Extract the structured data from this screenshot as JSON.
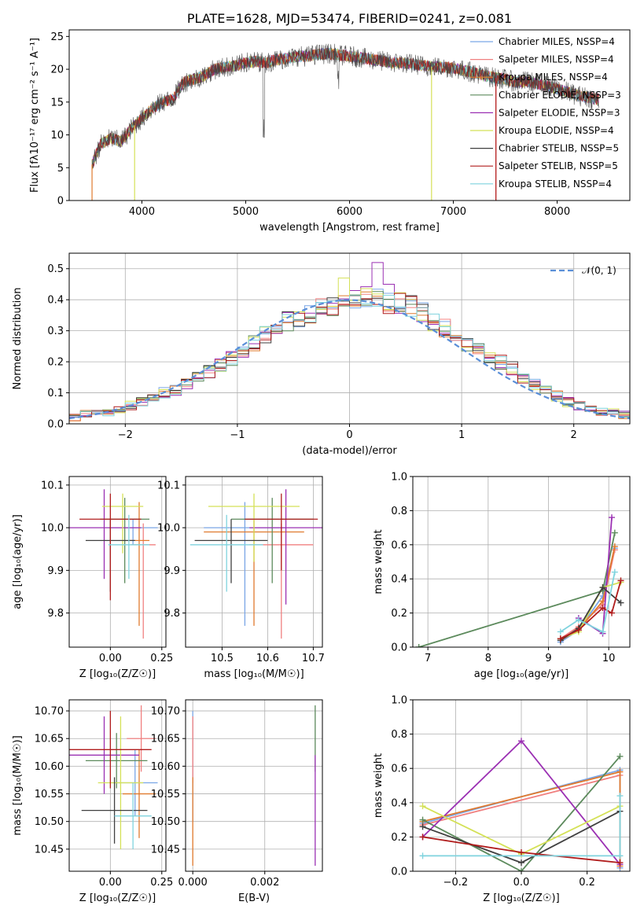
{
  "page": {
    "title": "PLATE=1628, MJD=53474, FIBERID=0241, z=0.081"
  },
  "chart_data": [
    {
      "id": "spectrum",
      "type": "line",
      "title": "PLATE=1628, MJD=53474, FIBERID=0241, z=0.081",
      "xlabel": "wavelength [Angstrom, rest frame]",
      "ylabel": "Flux [fλ10⁻¹⁷ erg cm⁻² s⁻¹ A⁻¹]",
      "xlim": [
        3300,
        8700
      ],
      "ylim": [
        0,
        26
      ],
      "xticks": [
        4000,
        5000,
        6000,
        7000,
        8000
      ],
      "yticks": [
        0,
        5,
        10,
        15,
        20,
        25
      ],
      "grid": false,
      "legend": "top-right",
      "x": [
        3520,
        3600,
        3700,
        3800,
        3900,
        4000,
        4100,
        4200,
        4300,
        4400,
        4500,
        4600,
        4700,
        4800,
        4900,
        5000,
        5100,
        5200,
        5300,
        5400,
        5500,
        5600,
        5700,
        5800,
        5900,
        6000,
        6100,
        6200,
        6300,
        6400,
        6500,
        6600,
        6700,
        6800,
        6900,
        7000,
        7100,
        7200,
        7300,
        7400,
        7500,
        7600,
        7700,
        7800,
        7900,
        8000,
        8100,
        8200,
        8300,
        8400
      ],
      "y": [
        5.5,
        8.5,
        9.5,
        9.0,
        11.0,
        12.5,
        14.0,
        15.0,
        15.5,
        18.0,
        18.5,
        19.0,
        20.0,
        20.3,
        20.5,
        21.0,
        21.2,
        21.0,
        21.5,
        21.6,
        22.0,
        22.0,
        22.3,
        22.4,
        22.2,
        22.0,
        21.8,
        21.5,
        21.3,
        21.0,
        21.0,
        20.8,
        20.6,
        20.4,
        20.3,
        20.2,
        19.8,
        19.5,
        19.0,
        18.7,
        18.5,
        18.0,
        18.2,
        17.8,
        17.5,
        17.0,
        16.5,
        16.0,
        15.7,
        15.4
      ],
      "series": [
        {
          "name": "Chabrier MILES, NSSP=4",
          "color": "#7aa6e6"
        },
        {
          "name": "Salpeter MILES, NSSP=4",
          "color": "#f08080"
        },
        {
          "name": "Kroupa MILES, NSSP=4",
          "color": "#e07a2e"
        },
        {
          "name": "Chabrier ELODIE, NSSP=3",
          "color": "#5c8a5c"
        },
        {
          "name": "Salpeter ELODIE, NSSP=3",
          "color": "#9b30b3"
        },
        {
          "name": "Kroupa ELODIE, NSSP=4",
          "color": "#d4e157"
        },
        {
          "name": "Chabrier STELIB, NSSP=5",
          "color": "#404040"
        },
        {
          "name": "Salpeter STELIB, NSSP=5",
          "color": "#b01c1c"
        },
        {
          "name": "Kroupa STELIB, NSSP=4",
          "color": "#7fd3de"
        }
      ]
    },
    {
      "id": "residuals",
      "type": "line",
      "xlabel": "(data-model)/error",
      "ylabel": "Normed distribution",
      "xlim": [
        -2.5,
        2.5
      ],
      "ylim": [
        0,
        0.55
      ],
      "xticks": [
        -2,
        -1,
        0,
        1,
        2
      ],
      "yticks": [
        0.0,
        0.1,
        0.2,
        0.3,
        0.4,
        0.5
      ],
      "grid": true,
      "legend": "top-right",
      "legend_entry": "𝒩(0, 1)",
      "bin_width": 0.1,
      "histogram_center": [
        0.02,
        0.03,
        0.03,
        0.04,
        0.05,
        0.06,
        0.07,
        0.08,
        0.1,
        0.11,
        0.13,
        0.15,
        0.17,
        0.19,
        0.21,
        0.23,
        0.26,
        0.29,
        0.31,
        0.33,
        0.34,
        0.35,
        0.37,
        0.38,
        0.39,
        0.4,
        0.41,
        0.4,
        0.39,
        0.39,
        0.38,
        0.36,
        0.33,
        0.31,
        0.29,
        0.26,
        0.24,
        0.22,
        0.2,
        0.18,
        0.15,
        0.13,
        0.11,
        0.09,
        0.07,
        0.06,
        0.05,
        0.04,
        0.04,
        0.03
      ],
      "gaussian_color": "#5a8fd8"
    },
    {
      "id": "age-vs-Z",
      "type": "scatter",
      "xlabel": "Z [log₁₀(Z/Z☉)]",
      "ylabel": "age  [log₁₀(age/yr)]",
      "xlim": [
        -0.2,
        0.27
      ],
      "ylim": [
        9.72,
        10.12
      ],
      "xticks": [
        0.0,
        0.25
      ],
      "xticklabels": [
        "0.00",
        "0.25"
      ],
      "yticks": [
        9.8,
        9.9,
        10.0,
        10.1
      ],
      "grid": true,
      "points": [
        {
          "x": 0.11,
          "y": 10.0,
          "xerr": 0.12,
          "yerr_lo": 0.04,
          "yerr_hi": 0.02
        },
        {
          "x": 0.16,
          "y": 9.96,
          "xerr": 0.06,
          "yerr_lo": 0.22,
          "yerr_hi": 0.05
        },
        {
          "x": 0.14,
          "y": 9.97,
          "xerr": 0.05,
          "yerr_lo": 0.2,
          "yerr_hi": 0.09
        },
        {
          "x": 0.07,
          "y": 10.02,
          "xerr": 0.12,
          "yerr_lo": 0.15,
          "yerr_hi": 0.05
        },
        {
          "x": -0.03,
          "y": 10.0,
          "xerr": 0.18,
          "yerr_lo": 0.12,
          "yerr_hi": 0.09
        },
        {
          "x": 0.06,
          "y": 10.05,
          "xerr": 0.1,
          "yerr_lo": 0.11,
          "yerr_hi": 0.03
        },
        {
          "x": 0.0,
          "y": 9.97,
          "xerr": 0.12,
          "yerr_lo": 0.12,
          "yerr_hi": 0.05
        },
        {
          "x": 0.0,
          "y": 10.02,
          "xerr": 0.15,
          "yerr_lo": 0.19,
          "yerr_hi": 0.06
        },
        {
          "x": 0.09,
          "y": 9.96,
          "xerr": 0.1,
          "yerr_lo": 0.08,
          "yerr_hi": 0.07
        }
      ]
    },
    {
      "id": "age-vs-mass",
      "type": "scatter",
      "xlabel": "mass [log₁₀(M/M☉)]",
      "xlim": [
        10.42,
        10.72
      ],
      "ylim": [
        9.72,
        10.12
      ],
      "xticks": [
        10.5,
        10.6,
        10.7
      ],
      "yticks": [
        9.8,
        9.9,
        10.0,
        10.1
      ],
      "grid": true,
      "points": [
        {
          "x": 10.55,
          "y": 10.0,
          "xerr": 0.09,
          "yerr_lo": 0.23,
          "yerr_hi": 0.06
        },
        {
          "x": 10.63,
          "y": 9.96,
          "xerr": 0.07,
          "yerr_lo": 0.22,
          "yerr_hi": 0.05
        },
        {
          "x": 10.57,
          "y": 9.99,
          "xerr": 0.11,
          "yerr_lo": 0.22,
          "yerr_hi": 0.03
        },
        {
          "x": 10.61,
          "y": 10.02,
          "xerr": 0.09,
          "yerr_lo": 0.15,
          "yerr_hi": 0.05
        },
        {
          "x": 10.64,
          "y": 10.0,
          "xerr": 0.08,
          "yerr_lo": 0.18,
          "yerr_hi": 0.09
        },
        {
          "x": 10.57,
          "y": 10.05,
          "xerr": 0.1,
          "yerr_lo": 0.13,
          "yerr_hi": 0.03
        },
        {
          "x": 10.52,
          "y": 9.97,
          "xerr": 0.08,
          "yerr_lo": 0.1,
          "yerr_hi": 0.05
        },
        {
          "x": 10.63,
          "y": 10.02,
          "xerr": 0.08,
          "yerr_lo": 0.12,
          "yerr_hi": 0.06
        },
        {
          "x": 10.51,
          "y": 9.96,
          "xerr": 0.08,
          "yerr_lo": 0.11,
          "yerr_hi": 0.07
        }
      ]
    },
    {
      "id": "weight-vs-age",
      "type": "line",
      "xlabel": "age  [log₁₀(age/yr)]",
      "ylabel": "mass weight",
      "xlim": [
        6.75,
        10.35
      ],
      "ylim": [
        0,
        1
      ],
      "xticks": [
        7,
        8,
        9,
        10
      ],
      "yticks": [
        0.0,
        0.2,
        0.4,
        0.6,
        0.8,
        1.0
      ],
      "grid": true,
      "series": [
        {
          "x": [
            9.2,
            9.5,
            9.9,
            10.1
          ],
          "y": [
            0.03,
            0.1,
            0.3,
            0.58
          ]
        },
        {
          "x": [
            9.2,
            9.5,
            9.9,
            10.1
          ],
          "y": [
            0.05,
            0.12,
            0.25,
            0.57
          ]
        },
        {
          "x": [
            9.2,
            9.5,
            9.9,
            10.1
          ],
          "y": [
            0.04,
            0.1,
            0.27,
            0.59
          ]
        },
        {
          "x": [
            6.85,
            9.9,
            10.1
          ],
          "y": [
            0.0,
            0.33,
            0.67
          ]
        },
        {
          "x": [
            9.5,
            9.9,
            10.05
          ],
          "y": [
            0.17,
            0.08,
            0.76
          ]
        },
        {
          "x": [
            9.2,
            9.5,
            9.9,
            10.2
          ],
          "y": [
            0.05,
            0.09,
            0.35,
            0.38
          ]
        },
        {
          "x": [
            9.2,
            9.5,
            9.9,
            10.2
          ],
          "y": [
            0.04,
            0.11,
            0.35,
            0.26
          ]
        },
        {
          "x": [
            9.2,
            9.5,
            9.9,
            10.05,
            10.2
          ],
          "y": [
            0.05,
            0.1,
            0.23,
            0.2,
            0.39
          ]
        },
        {
          "x": [
            9.2,
            9.5,
            9.9,
            10.1
          ],
          "y": [
            0.09,
            0.16,
            0.09,
            0.44
          ]
        }
      ]
    },
    {
      "id": "mass-vs-Z",
      "type": "scatter",
      "xlabel": "Z [log₁₀(Z/Z☉)]",
      "ylabel": "mass [log₁₀(M/M☉)]",
      "xlim": [
        -0.2,
        0.27
      ],
      "ylim": [
        10.41,
        10.72
      ],
      "xticks": [
        0.0,
        0.25
      ],
      "xticklabels": [
        "0.00",
        "0.25"
      ],
      "yticks": [
        10.45,
        10.5,
        10.55,
        10.6,
        10.65,
        10.7
      ],
      "grid": true,
      "points": [
        {
          "x": 0.12,
          "y": 10.57,
          "xerr": 0.11,
          "yerr": 0.06
        },
        {
          "x": 0.15,
          "y": 10.65,
          "xerr": 0.07,
          "yerr": 0.06
        },
        {
          "x": 0.14,
          "y": 10.55,
          "xerr": 0.08,
          "yerr": 0.08
        },
        {
          "x": 0.03,
          "y": 10.61,
          "xerr": 0.15,
          "yerr": 0.05
        },
        {
          "x": -0.03,
          "y": 10.62,
          "xerr": 0.17,
          "yerr": 0.07
        },
        {
          "x": 0.05,
          "y": 10.57,
          "xerr": 0.11,
          "yerr": 0.12
        },
        {
          "x": 0.02,
          "y": 10.52,
          "xerr": 0.16,
          "yerr": 0.06
        },
        {
          "x": 0.0,
          "y": 10.63,
          "xerr": 0.2,
          "yerr": 0.07
        },
        {
          "x": 0.11,
          "y": 10.51,
          "xerr": 0.09,
          "yerr": 0.06
        }
      ]
    },
    {
      "id": "mass-vs-EBV",
      "type": "scatter",
      "xlabel": "E(B-V)",
      "xlim": [
        -0.0002,
        0.0036
      ],
      "ylim": [
        10.41,
        10.72
      ],
      "xticks": [
        0.0,
        0.002
      ],
      "xticklabels": [
        "0.000",
        "0.002"
      ],
      "yticks": [
        10.45,
        10.5,
        10.55,
        10.6,
        10.65,
        10.7
      ],
      "grid": true,
      "points": [
        {
          "x": 0.0,
          "y": 10.6,
          "yerr": 0.1
        },
        {
          "x": 0.0,
          "y": 10.63,
          "yerr": 0.06
        },
        {
          "x": 0.0,
          "y": 10.5,
          "yerr": 0.08
        },
        {
          "x": 0.0034,
          "y": 10.65,
          "yerr": 0.06
        },
        {
          "x": 0.0034,
          "y": 10.52,
          "yerr": 0.1
        }
      ]
    },
    {
      "id": "weight-vs-Z",
      "type": "line",
      "xlabel": "Z [log₁₀(Z/Z☉)]",
      "ylabel": "mass weight",
      "xlim": [
        -0.33,
        0.33
      ],
      "ylim": [
        0,
        1
      ],
      "xticks": [
        -0.2,
        0.0,
        0.2
      ],
      "xticklabels": [
        "−0.2",
        "0.0",
        "0.2"
      ],
      "yticks": [
        0.0,
        0.2,
        0.4,
        0.6,
        0.8,
        1.0
      ],
      "grid": true,
      "series": [
        {
          "x": [
            -0.3,
            0.3,
            0.3
          ],
          "y": [
            0.28,
            0.59,
            0.02
          ]
        },
        {
          "x": [
            -0.3,
            0.3
          ],
          "y": [
            0.27,
            0.56
          ]
        },
        {
          "x": [
            -0.3,
            0.3,
            0.3
          ],
          "y": [
            0.29,
            0.58,
            0.03
          ]
        },
        {
          "x": [
            -0.3,
            0.0,
            0.3
          ],
          "y": [
            0.3,
            0.0,
            0.67
          ]
        },
        {
          "x": [
            -0.3,
            0.0,
            0.3
          ],
          "y": [
            0.2,
            0.76,
            0.04
          ]
        },
        {
          "x": [
            -0.3,
            0.0,
            0.3
          ],
          "y": [
            0.38,
            0.1,
            0.38
          ]
        },
        {
          "x": [
            -0.3,
            0.0,
            0.3
          ],
          "y": [
            0.26,
            0.05,
            0.35
          ]
        },
        {
          "x": [
            -0.3,
            0.0,
            0.3
          ],
          "y": [
            0.2,
            0.11,
            0.05
          ]
        },
        {
          "x": [
            -0.3,
            0.3,
            0.3
          ],
          "y": [
            0.09,
            0.09,
            0.44
          ]
        }
      ]
    }
  ]
}
